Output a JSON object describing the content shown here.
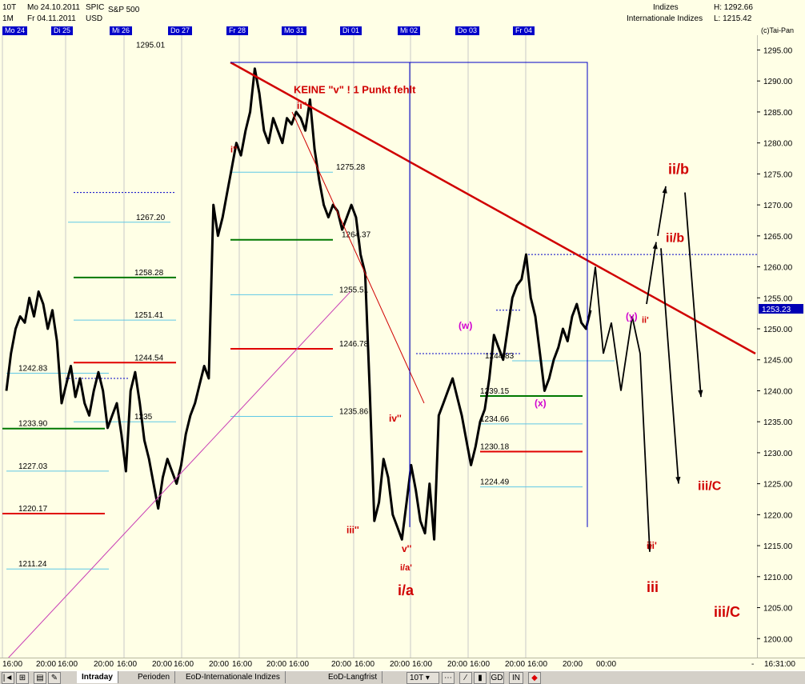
{
  "header": {
    "interval": "10T",
    "range": "1M",
    "date_from": "Mo 24.10.2011",
    "date_to": "Fr 04.11.2011",
    "symbol": "SPIC",
    "currency": "USD",
    "name": "S&P 500",
    "group": "Indizes",
    "group_full": "Internationale Indizes",
    "high": "H: 1292.66",
    "low": "L: 1215.42",
    "copyright": "(c)Tai-Pan"
  },
  "date_tags": [
    "Mo 24",
    "Di 25",
    "Mi 26",
    "Do 27",
    "Fr 28",
    "Mo 31",
    "Di 01",
    "Mi 02",
    "Do 03",
    "Fr 04"
  ],
  "time_labels": [
    "16:00",
    "20:00",
    "16:00",
    "20:00",
    "16:00",
    "20:00",
    "16:00",
    "20:00",
    "16:00",
    "20:00",
    "16:00",
    "20:00",
    "16:00",
    "20:00",
    "16:00",
    "20:00",
    "16:00",
    "20:00",
    "16:00",
    "20:00",
    "00:00",
    "-",
    "16:31:00"
  ],
  "tabs": [
    "Intraday",
    "Perioden",
    "EoD-Internationale Indizes",
    "EoD-Langfrist"
  ],
  "toolbar": {
    "interval_select": "10T",
    "gd_label": "GD",
    "in_label": "IN"
  },
  "chart_data": {
    "type": "line",
    "title": "S&P 500",
    "ylim": [
      1195,
      1297
    ],
    "y_ticks": [
      1200,
      1205,
      1210,
      1215,
      1220,
      1225,
      1230,
      1235,
      1240,
      1245,
      1250,
      1255,
      1260,
      1265,
      1270,
      1275,
      1280,
      1285,
      1290,
      1295
    ],
    "current_price": "1253.23",
    "grid": false,
    "series": [
      {
        "values": [
          1240,
          1246,
          1250,
          1252,
          1251,
          1255,
          1252,
          1256,
          1254,
          1250,
          1253,
          1248,
          1238,
          1241,
          1244,
          1239,
          1242,
          1238,
          1236,
          1240,
          1243,
          1240,
          1234,
          1236,
          1238,
          1233,
          1227,
          1240,
          1243,
          1238,
          1232,
          1229,
          1225,
          1221,
          1226,
          1229,
          1227,
          1225,
          1228,
          1233,
          1236,
          1238,
          1241,
          1244,
          1242,
          1270,
          1265,
          1268,
          1272,
          1276,
          1280,
          1278,
          1282,
          1285,
          1292,
          1288,
          1282,
          1280,
          1284,
          1282,
          1280,
          1284,
          1283,
          1285,
          1284,
          1282,
          1287,
          1279,
          1274,
          1270,
          1268,
          1270,
          1269,
          1266,
          1268,
          1270,
          1268,
          1262,
          1259,
          1240,
          1219,
          1222,
          1229,
          1226,
          1220,
          1218,
          1216,
          1222,
          1228,
          1224,
          1219,
          1217,
          1225,
          1216,
          1236,
          1238,
          1240,
          1242,
          1239,
          1236,
          1232,
          1228,
          1231,
          1235,
          1237,
          1242,
          1249,
          1247,
          1245,
          1250,
          1255,
          1257,
          1258,
          1262,
          1255,
          1252,
          1246,
          1240,
          1242,
          1245,
          1247,
          1250,
          1248,
          1252,
          1254,
          1251,
          1250,
          1253
        ]
      }
    ],
    "price_levels": [
      "1295.01",
      "1275.28",
      "1267.20",
      "1264.37",
      "1258.28",
      "1255.51",
      "1251.41",
      "1246.78",
      "1244.54",
      "1244.83",
      "1242.83",
      "1239.15",
      "1235",
      "1235.86",
      "1234.66",
      "1233.90",
      "1230.18",
      "1227.03",
      "1224.49",
      "1220.17",
      "1211.24"
    ],
    "annotations": [
      "KEINE \"v\" ! 1 Punkt fehlt",
      "ii''",
      "i''",
      "iii''",
      "iv''",
      "v''",
      "i/a'",
      "i/a",
      "(w)",
      "(x)",
      "(y)",
      "ii'",
      "ii/b",
      "ii/b",
      "iii/C",
      "iii'",
      "iii",
      "iii/C"
    ]
  }
}
